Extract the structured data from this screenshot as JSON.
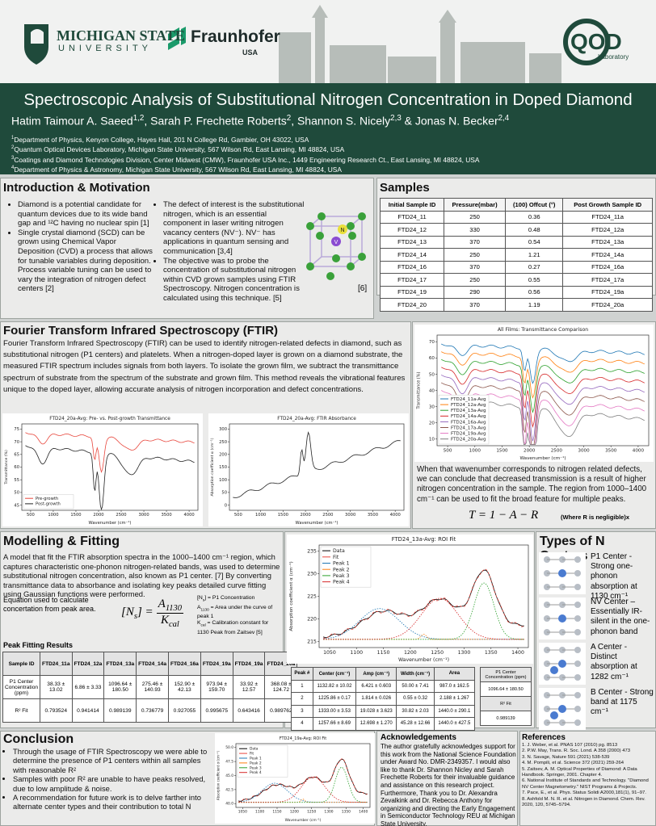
{
  "header": {
    "msu_name": "MICHIGAN STATE",
    "msu_sub": "UNIVERSITY",
    "fraunhofer_name": "Fraunhofer",
    "fraunhofer_sub": "USA",
    "qod_name": "QOD",
    "qod_sub": "Laboratory",
    "title": "Spectroscopic Analysis of Substitutional Nitrogen Concentration in Doped Diamond",
    "authors": [
      "Hatim Taimour A. Saeed",
      "1,2",
      ", Sarah P. Frechette Roberts",
      "2",
      ", Shannon S. Nicely",
      "2,3",
      " & Jonas N. Becker",
      "2,4"
    ],
    "affiliations": [
      {
        "sup": "1",
        "text": "Department of Physics, Kenyon College, Hayes Hall, 201 N College Rd, Gambier, OH 43022, USA"
      },
      {
        "sup": "2",
        "text": "Quantum Optical Devices Laboratory, Michigan State University, 567 Wilson Rd, East Lansing, MI 48824, USA"
      },
      {
        "sup": "3",
        "text": "Coatings and Diamond Technologies Division, Center Midwest (CMW),  Fraunhofer USA Inc., 1449 Engineering Research Ct., East Lansing, MI 48824, USA"
      },
      {
        "sup": "4",
        "text": "Department of Physics & Astronomy, Michigan State University, 567 Wilson Rd, East Lansing, MI 48824, USA"
      }
    ]
  },
  "intro": {
    "title": "Introduction & Motivation",
    "left_bullets": [
      "Diamond is a potential candidate for quantum devices due to its wide band gap and ¹²C having no nuclear spin [1]",
      "Single crystal diamond (SCD) can be grown using Chemical Vapor Deposition (CVD) a process that allows for tunable variables during deposition. Process variable tuning can be used to vary the integration of nitrogen defect centers [2]"
    ],
    "right_bullets": [
      "The defect of interest is the substitutional nitrogen, which is an essential component in laser writing nitrogen vacancy centers (NV⁻). NV⁻ has applications in quantum sensing and communication [3,4]",
      "The objective was to probe the concentration of substitutional nitrogen within CVD grown samples using FTIR Spectroscopy. Nitrogen concentration is calculated using this technique. [5]"
    ],
    "image_caption": "[6]",
    "image_labels": [
      "N",
      "V"
    ]
  },
  "samples": {
    "title": "Samples",
    "columns": [
      "Initial Sample ID",
      "Pressure(mbar)",
      "(100) Offcut (°)",
      "Post Growth Sample ID"
    ],
    "rows": [
      [
        "FTD24_11",
        "250",
        "0.36",
        "FTD24_11a"
      ],
      [
        "FTD24_12",
        "330",
        "0.48",
        "FTD24_12a"
      ],
      [
        "FTD24_13",
        "370",
        "0.54",
        "FTD24_13a"
      ],
      [
        "FTD24_14",
        "250",
        "1.21",
        "FTD24_14a"
      ],
      [
        "FTD24_16",
        "370",
        "0.27",
        "FTD24_16a"
      ],
      [
        "FTD24_17",
        "250",
        "0.55",
        "FTD24_17a"
      ],
      [
        "FTD24_19",
        "290",
        "0.56",
        "FTD24_19a"
      ],
      [
        "FTD24_20",
        "370",
        "1.19",
        "FTD24_20a"
      ]
    ]
  },
  "ftir": {
    "title": "Fourier Transform Infrared Spectroscopy (FTIR)",
    "text": "Fourier Transform Infrared Spectroscopy (FTIR) can be used to identify nitrogen-related defects in diamond, such as substitutional nitrogen (P1 centers) and platelets. When a nitrogen-doped layer is grown on a diamond substrate, the measured FTIR spectrum includes signals from both layers. To isolate the grown film, we subtract the transmittance spectrum of substrate from the spectrum of the substrate and grown film. This method reveals the vibrational features unique to the doped layer, allowing accurate analysis of nitrogen incorporation and defect concentrations.",
    "plots": [
      {
        "title": "FTD24_20a-Avg: Pre- vs. Post-growth Transmittance",
        "xlabel": "Wavenumber (cm⁻¹)",
        "ylabel": "Transmittance (%)",
        "xticks": [
          "500",
          "1000",
          "1500",
          "2000",
          "2500",
          "3000",
          "3500",
          "4000"
        ],
        "yticks": [
          "45",
          "50",
          "55",
          "60",
          "65",
          "70",
          "75"
        ],
        "legend": [
          {
            "name": "Pre-growth",
            "color": "#e8473d"
          },
          {
            "name": "Post-growth",
            "color": "#222222"
          }
        ]
      },
      {
        "title": "FTD24_20a-Avg: FTIR Absorbance",
        "xlabel": "Wavenumber (cm⁻¹)",
        "ylabel": "Absorption coefficient α (cm⁻¹)",
        "xticks": [
          "500",
          "1000",
          "1500",
          "2000",
          "2500",
          "3000",
          "3500",
          "4000"
        ],
        "yticks": [
          "0",
          "50",
          "100",
          "150",
          "200",
          "250",
          "300"
        ],
        "legend": [
          {
            "name": "",
            "color": "#222222"
          }
        ]
      }
    ]
  },
  "all_films": {
    "plot": {
      "title": "All Films: Transmittance Comparison",
      "xlabel": "Wavenumber (cm⁻¹)",
      "ylabel": "Transmittance (%)",
      "xticks": [
        "500",
        "1000",
        "1500",
        "2000",
        "2500",
        "3000",
        "3500",
        "4000"
      ],
      "yticks": [
        "10",
        "20",
        "30",
        "40",
        "50",
        "60",
        "70"
      ],
      "legend": [
        {
          "name": "FTD24_11a-Avg",
          "color": "#1f77b4"
        },
        {
          "name": "FTD24_12a-Avg",
          "color": "#ff7f0e"
        },
        {
          "name": "FTD24_13a-Avg",
          "color": "#2ca02c"
        },
        {
          "name": "FTD24_14a-Avg",
          "color": "#d62728"
        },
        {
          "name": "FTD24_16a-Avg",
          "color": "#9467bd"
        },
        {
          "name": "FTD24_17a-Avg",
          "color": "#8c564b"
        },
        {
          "name": "FTD24_19a-Avg",
          "color": "#e377c2"
        },
        {
          "name": "FTD24_20a-Avg",
          "color": "#7f7f7f"
        }
      ]
    },
    "text": "When that wavenumber corresponds to nitrogen related defects, we can conclude that decreased transmission is a result of higher nitrogen concentration in the sample. The region from 1000–1400 cm⁻¹ can be used to fit the broad feature for multiple peaks.",
    "equation": "T = 1 − A − R",
    "equation_note": "(Where R is negligible)x"
  },
  "modelling": {
    "title": "Modelling & Fitting",
    "text": "A model that fit the FTIR absorption spectra in the 1000–1400 cm⁻¹ region, which captures characteristic one-phonon nitrogen-related bands, was used to determine substitutional nitrogen concentration, also known as P1 center. [7] By converting transmittance data to absorbance and isolating key peaks detailed curve fitting using Gaussian functions were performed.",
    "equation_intro": "Equation used to calculate concertation from peak area.",
    "equation_lhs": [
      "[N",
      "s",
      "] ="
    ],
    "equation_num": [
      "A",
      "1130"
    ],
    "equation_den": [
      "K",
      "cal"
    ],
    "equation_notes": [
      [
        "[N",
        "s",
        "] = P1 Concentration"
      ],
      [
        "A",
        "1130",
        " = Area under the curve of peak 1"
      ],
      [
        "K",
        "cal",
        " = Calibration constant for 1130 Peak from Zaitsev [5]"
      ]
    ],
    "results_title": "Peak Fitting Results",
    "results_columns": [
      "Sample ID",
      "FTD24_11a",
      "FTD24_12a",
      "FTD24_13a",
      "FTD24_14a",
      "FTD24_16a",
      "FTD24_19a",
      "FTD24_19a",
      "FTD24_20a"
    ],
    "results_rows": [
      [
        "P1 Center Concentration (ppm)",
        "38.33 ± 13.02",
        "6.86 ± 3.33",
        "1096.64 ± 180.50",
        "275.46 ± 140.93",
        "152.90 ± 42.13",
        "973.94 ± 159.70",
        "33.92 ± 12.57",
        "368.08 ± 124.72"
      ],
      [
        "R² Fit",
        "0.793524",
        "0.941414",
        "0.989139",
        "0.736779",
        "0.927055",
        "0.995675",
        "0.643416",
        "0.989762"
      ]
    ]
  },
  "roi": {
    "plot": {
      "title": "FTD24_13a-Avg: ROI Fit",
      "xlabel": "Wavenumber (cm⁻¹)",
      "ylabel": "Absorption coefficient α (cm⁻¹)",
      "xticks": [
        "1050",
        "1100",
        "1150",
        "1200",
        "1250",
        "1300",
        "1350",
        "1400"
      ],
      "yticks": [
        "215",
        "220",
        "225",
        "230",
        "235"
      ],
      "legend": [
        {
          "name": "Data",
          "color": "#000000"
        },
        {
          "name": "Fit",
          "color": "#e8473d"
        },
        {
          "name": "Peak 1",
          "color": "#1f77b4"
        },
        {
          "name": "Peak 2",
          "color": "#ff7f0e"
        },
        {
          "name": "Peak 3",
          "color": "#2ca02c"
        },
        {
          "name": "Peak 4",
          "color": "#d62728"
        }
      ]
    },
    "peak_columns": [
      "Peak #",
      "Center (cm⁻¹)",
      "Amp (cm⁻¹)",
      "Width (cm⁻¹)",
      "Area"
    ],
    "peak_rows": [
      [
        "1",
        "1132.82 ± 10.02",
        "6.421 ± 0.603",
        "50.00 ± 7.41",
        "987.0 ± 162.5"
      ],
      [
        "2",
        "1225.86 ± 0.17",
        "1.814 ± 0.026",
        "0.55 ± 0.32",
        "2.188 ± 1.267"
      ],
      [
        "3",
        "1333.00 ± 3.53",
        "19.028 ± 3.623",
        "30.82 ± 2.03",
        "1440.0 ± 290.1"
      ],
      [
        "4",
        "1257.66 ± 8.69",
        "12.698 ± 1.270",
        "45.28 ± 12.66",
        "1440.0 ± 427.5"
      ]
    ],
    "summary_rows": [
      [
        "P1 Center Concentration (ppm)"
      ],
      [
        "1096.64 ± 180.50"
      ],
      [
        "R² Fit"
      ],
      [
        "0.989139"
      ]
    ]
  },
  "types": {
    "title": "Types of N Centers",
    "items": [
      "P1 Center - Strong one-phonon absorption at 1130 cm⁻¹",
      "NV Center – Essentially IR-silent in the one-phonon band",
      "A Center - Distinct absorption at 1282 cm⁻¹",
      "B Center - Strong band at 1175 cm⁻¹"
    ]
  },
  "conclusion": {
    "title": "Conclusion",
    "bullets": [
      "Through the usage of FTIR Spectroscopy we were able to determine the presence of P1 centers within all samples with reasonable R²",
      "Samples with poor R² are unable to have peaks resolved, due to low amplitude & noise.",
      "A recommendation for future work is to delve farther into alternate center types and their contribution to total N"
    ],
    "plot": {
      "title": "FTD24_19a-Avg: ROI Fit",
      "xlabel": "Wavenumber (cm⁻¹)",
      "ylabel": "Absorption coefficient α (cm⁻¹)",
      "xticks": [
        "1050",
        "1100",
        "1150",
        "1200",
        "1250",
        "1300",
        "1350",
        "1400"
      ],
      "yticks": [
        "40.0",
        "42.5",
        "45.0",
        "47.5",
        "50.0"
      ],
      "legend": [
        {
          "name": "Data",
          "color": "#000000"
        },
        {
          "name": "Fit",
          "color": "#e8473d"
        },
        {
          "name": "Peak 1",
          "color": "#1f77b4"
        },
        {
          "name": "Peak 2",
          "color": "#ff7f0e"
        },
        {
          "name": "Peak 3",
          "color": "#2ca02c"
        },
        {
          "name": "Peak 4",
          "color": "#d62728"
        }
      ]
    }
  },
  "acknowledgements": {
    "title": "Acknowledgements",
    "text": "The author gratefully acknowledges support for this work from the National Science Foundation under Award No. DMR-2349357. I would also like to thank Dr. Shannon Nicley and Sarah Frechette Roberts for their invaluable guidance and assistance on this research project. Furthermore, Thank you to Dr. Alexandra Zevalkink and Dr. Rebecca Anthony for organizing and directing the Early Engagement in Semiconductor Technology REU at Michigan State University."
  },
  "references": {
    "title": "References",
    "items": [
      "1. J. Weber, et al. PNAS 107 (2010) pg. 8513",
      "2. P.W. May, Trans. R. Soc. Lond. A 358 (2000) 473",
      "3. N. Savage, Nature 591 (2021) 538-539",
      "4. M. Pompili, et al. Science 372 (2021) 259-264",
      "5. Zaitsev, A. M. Optical Properties of Diamond: A Data Handbook. Springer, 2001. Chapter 4.",
      "6. National Institute of Standards and Technology. \"Diamond NV Center Magnetometry.\" NIST Programs & Projects.",
      "7. Pace, E., et al. Phys. Status Solidi A2000,181(1), 91–97.",
      "8. Ashfold M. N. R. et al. Nitrogen in Diamond. Chem. Rev. 2020, 120, 5745–5794."
    ]
  }
}
